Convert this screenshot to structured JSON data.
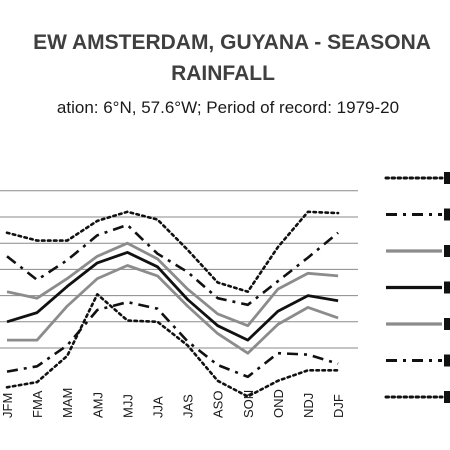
{
  "chart_data": {
    "type": "line",
    "title_line1": "EW AMSTERDAM, GUYANA - SEASONA",
    "title_line2": "RAINFALL",
    "subtitle": "ation: 6°N, 57.6°W; Period of record: 1979-20",
    "categories": [
      "JFM",
      "FMA",
      "MAM",
      "AMJ",
      "MJJ",
      "JJA",
      "JAS",
      "ASO",
      "SON",
      "OND",
      "NDJ",
      "DJF"
    ],
    "grid": true,
    "legend_position": "right",
    "series": [
      {
        "style": "dotted-dark",
        "values": [
          88,
          82,
          82,
          97,
          104,
          98,
          75,
          50,
          43,
          77,
          104,
          103
        ]
      },
      {
        "style": "dashdot-dark",
        "values": [
          70,
          52,
          67,
          86,
          94,
          72,
          58,
          38,
          33,
          51,
          69,
          88
        ]
      },
      {
        "style": "solid-gray",
        "values": [
          43,
          38,
          53,
          70,
          80,
          68,
          45,
          26,
          17,
          45,
          57,
          55
        ]
      },
      {
        "style": "solid-black",
        "values": [
          20,
          27,
          47,
          65,
          73,
          62,
          37,
          17,
          6,
          28,
          40,
          36
        ]
      },
      {
        "style": "solid-gray",
        "values": [
          6,
          6,
          32,
          53,
          63,
          55,
          32,
          11,
          -4,
          18,
          31,
          23
        ]
      },
      {
        "style": "dashdot-dark",
        "values": [
          -18,
          -14,
          2,
          29,
          35,
          30,
          5,
          -13,
          -22,
          -4,
          -5,
          -12
        ]
      },
      {
        "style": "dotted-dark",
        "values": [
          -30,
          -26,
          -6,
          41,
          21,
          20,
          2,
          -25,
          -37,
          -25,
          -17,
          -17
        ]
      }
    ]
  },
  "colors": {
    "dark": "#111111",
    "gray": "#8c8c8c",
    "grid": "#8a8a8a",
    "text": "#1a1a1a"
  }
}
